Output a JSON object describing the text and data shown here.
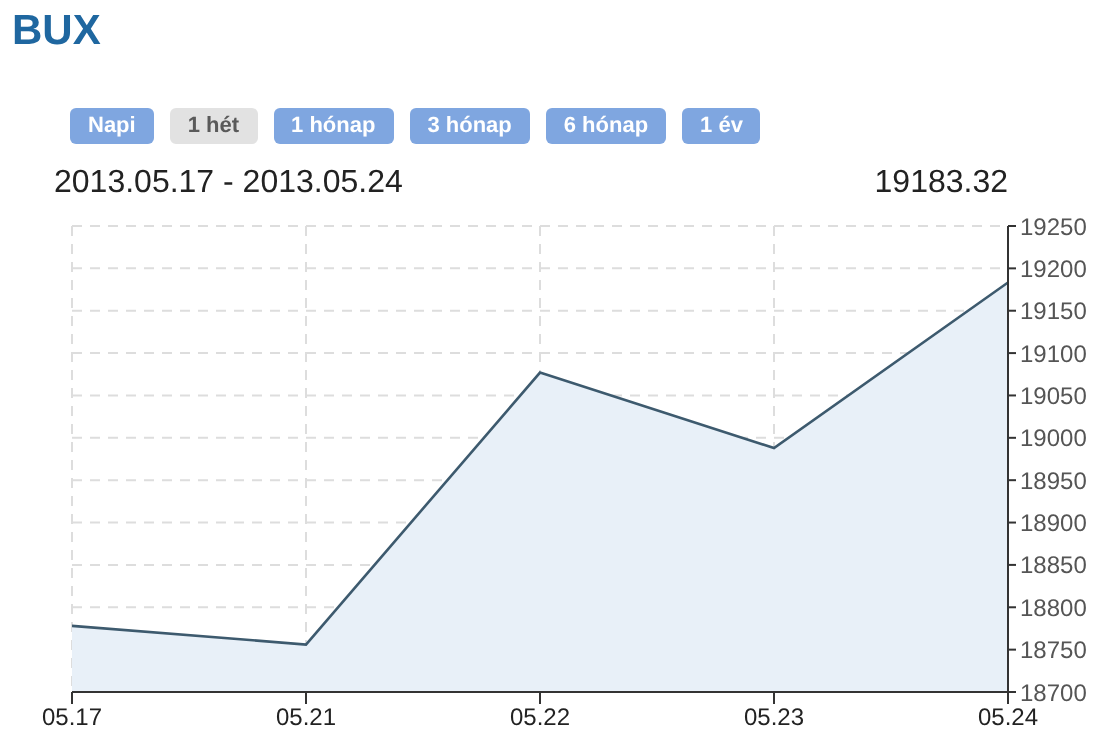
{
  "chart_data": {
    "type": "area",
    "title": "BUX",
    "subtitle": "2013.05.17 - 2013.05.24",
    "annotations": [
      "Napi",
      "1 hét",
      "1 hónap",
      "3 hónap",
      "6 hónap",
      "1 év",
      "19183.32"
    ],
    "categories": [
      "05.17",
      "05.21",
      "05.22",
      "05.23",
      "05.24"
    ],
    "series": [
      {
        "color": "#3d5a6e",
        "values": [
          18778,
          18756,
          19077,
          18988,
          19183.32
        ]
      }
    ],
    "ylim": [
      18700,
      19250
    ],
    "yticks": [
      18700,
      18750,
      18800,
      18850,
      18900,
      18950,
      19000,
      19050,
      19100,
      19150,
      19200,
      19250
    ],
    "grid": true
  }
}
